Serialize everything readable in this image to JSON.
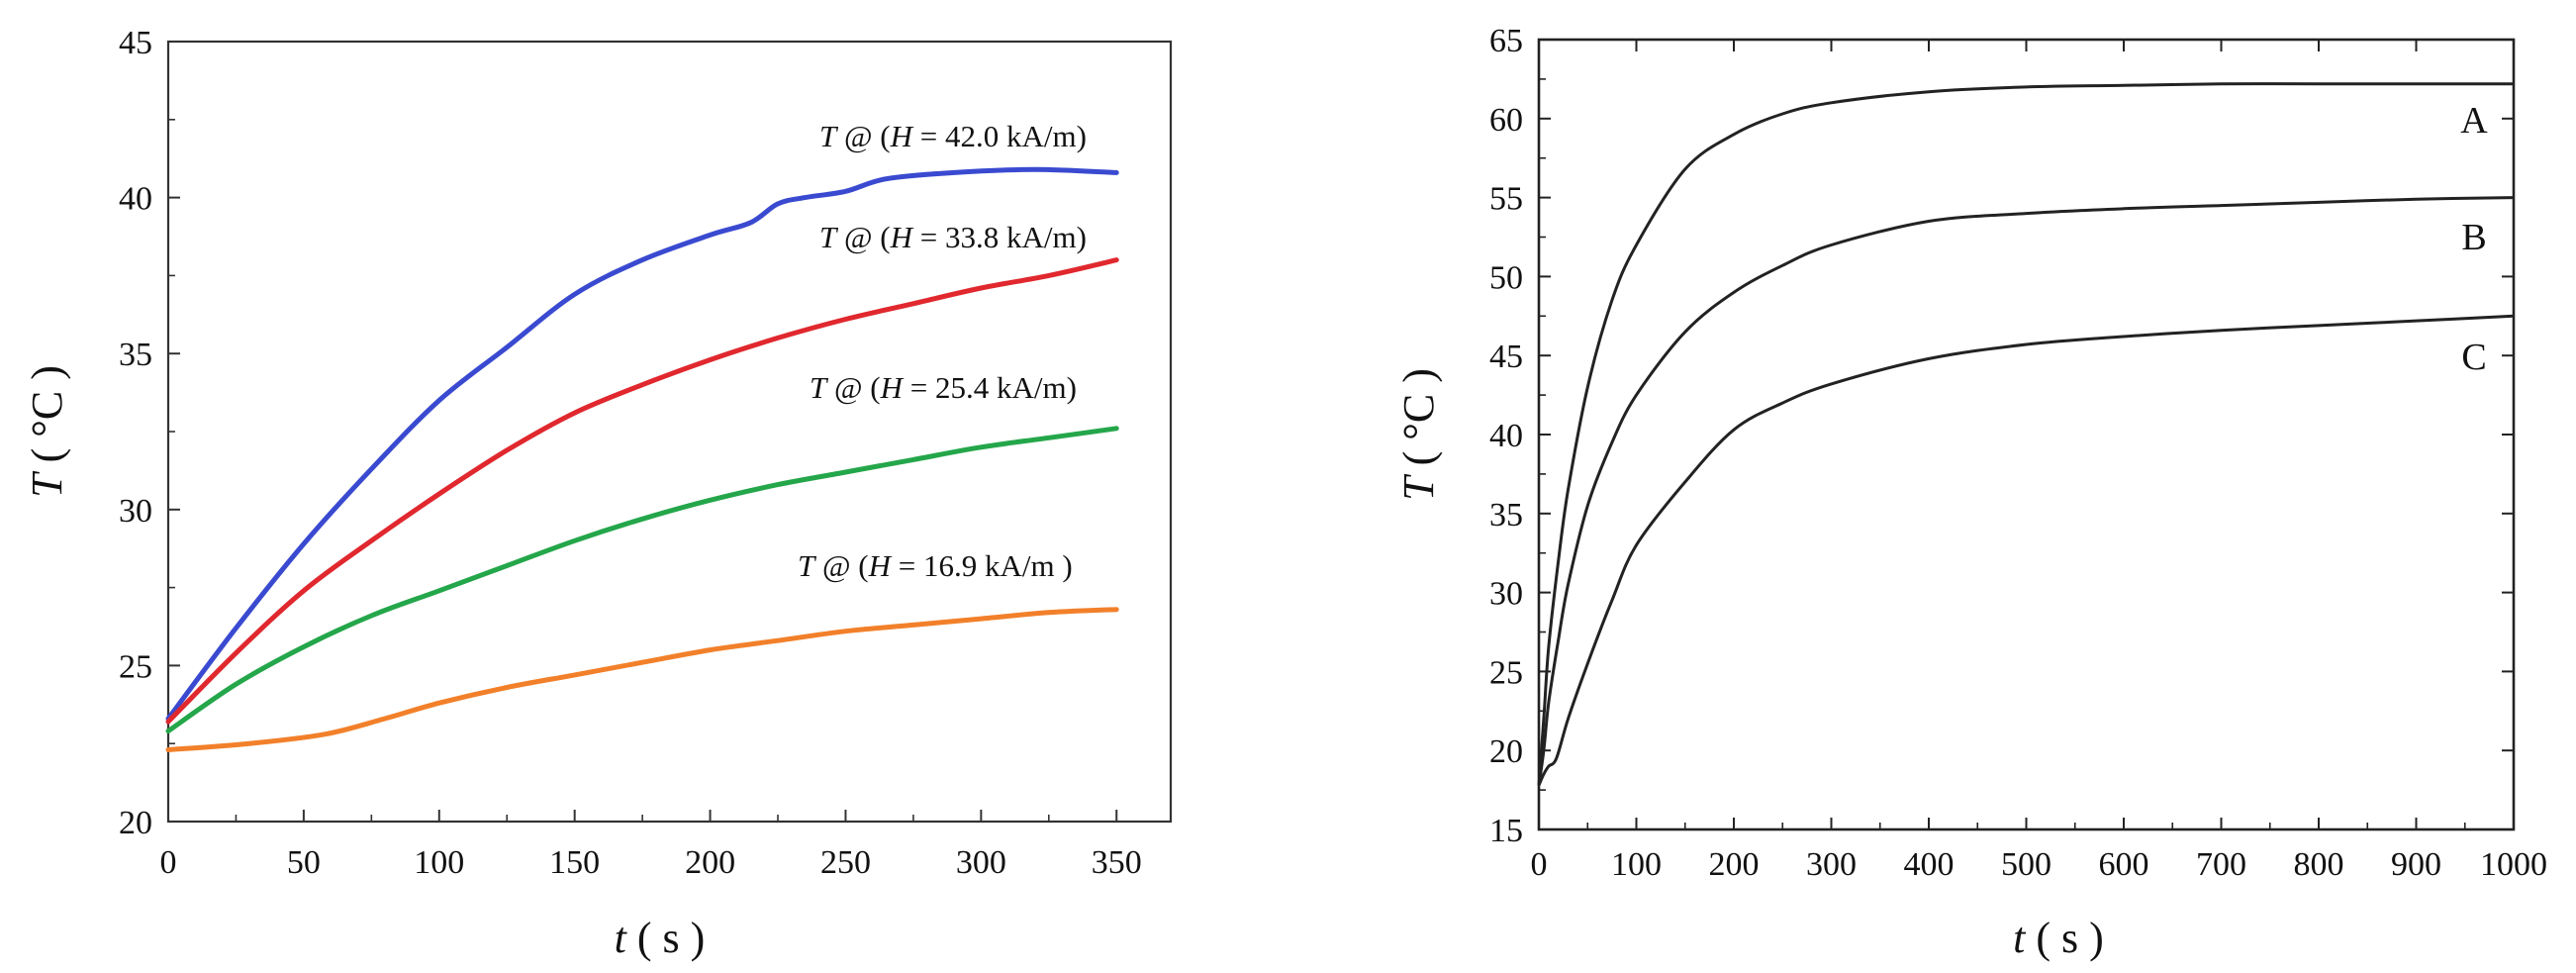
{
  "chart_data": [
    {
      "type": "line",
      "title": "",
      "xlabel": {
        "var": "t",
        "unit": "( s )"
      },
      "ylabel": {
        "var": "T",
        "unit": "( °C )"
      },
      "xlim": [
        0,
        370
      ],
      "ylim": [
        20,
        45
      ],
      "xticks": [
        0,
        50,
        100,
        150,
        200,
        250,
        300,
        350
      ],
      "yticks": [
        20,
        25,
        30,
        35,
        40,
        45
      ],
      "series": [
        {
          "name": "42.0",
          "label_parts": [
            "T",
            " @ (",
            "H",
            " = 42.0  kA/m)"
          ],
          "color": "#3a4ad0",
          "x": [
            0,
            25,
            50,
            75,
            100,
            125,
            150,
            175,
            200,
            215,
            225,
            235,
            250,
            265,
            290,
            320,
            350
          ],
          "y": [
            23.3,
            26.2,
            28.9,
            31.3,
            33.5,
            35.2,
            36.9,
            38.0,
            38.8,
            39.2,
            39.8,
            40.0,
            40.2,
            40.6,
            40.8,
            40.9,
            40.8
          ]
        },
        {
          "name": "33.8",
          "label_parts": [
            "T",
            " @ (",
            "H",
            " = 33.8 kA/m)"
          ],
          "color": "#e0282e",
          "x": [
            0,
            25,
            50,
            75,
            100,
            125,
            150,
            175,
            200,
            225,
            250,
            275,
            300,
            325,
            350
          ],
          "y": [
            23.2,
            25.4,
            27.4,
            29.0,
            30.5,
            31.9,
            33.1,
            34.0,
            34.8,
            35.5,
            36.1,
            36.6,
            37.1,
            37.5,
            38.0
          ]
        },
        {
          "name": "25.4",
          "label_parts": [
            "T",
            " @ (",
            "H",
            " = 25.4 kA/m)"
          ],
          "color": "#24a64a",
          "x": [
            0,
            25,
            50,
            75,
            100,
            125,
            150,
            175,
            200,
            225,
            250,
            275,
            300,
            325,
            350
          ],
          "y": [
            22.9,
            24.4,
            25.6,
            26.6,
            27.4,
            28.2,
            29.0,
            29.7,
            30.3,
            30.8,
            31.2,
            31.6,
            32.0,
            32.3,
            32.6
          ]
        },
        {
          "name": "16.9",
          "label_parts": [
            "T",
            " @ (",
            "H",
            " = 16.9 kA/m )"
          ],
          "color": "#f2802a",
          "x": [
            0,
            30,
            58,
            80,
            100,
            125,
            150,
            175,
            200,
            225,
            250,
            275,
            300,
            325,
            350
          ],
          "y": [
            22.3,
            22.5,
            22.8,
            23.3,
            23.8,
            24.3,
            24.7,
            25.1,
            25.5,
            25.8,
            26.1,
            26.3,
            26.5,
            26.7,
            26.8
          ]
        }
      ]
    },
    {
      "type": "line",
      "title": "",
      "xlabel": {
        "var": "t",
        "unit": "( s )"
      },
      "ylabel": {
        "var": "T",
        "unit": "( °C )"
      },
      "xlim": [
        0,
        1000
      ],
      "ylim": [
        15,
        65
      ],
      "xticks": [
        0,
        100,
        200,
        300,
        400,
        500,
        600,
        700,
        800,
        900,
        1000
      ],
      "yticks": [
        15,
        20,
        25,
        30,
        35,
        40,
        45,
        50,
        55,
        60,
        65
      ],
      "series": [
        {
          "name": "A",
          "color": "#222222",
          "x": [
            0,
            5,
            10,
            20,
            30,
            50,
            75,
            100,
            150,
            200,
            250,
            300,
            400,
            500,
            600,
            700,
            800,
            900,
            1000
          ],
          "y": [
            17.8,
            22,
            26.5,
            32,
            36.5,
            43,
            48.5,
            52,
            56.8,
            59.0,
            60.3,
            61.0,
            61.7,
            62.0,
            62.1,
            62.2,
            62.2,
            62.2,
            62.2
          ]
        },
        {
          "name": "B",
          "color": "#222222",
          "x": [
            0,
            5,
            10,
            20,
            30,
            50,
            75,
            100,
            150,
            200,
            250,
            300,
            400,
            500,
            600,
            700,
            800,
            900,
            1000
          ],
          "y": [
            17.8,
            20,
            23,
            27,
            30.5,
            35.5,
            39.5,
            42.5,
            46.5,
            49.0,
            50.7,
            52.0,
            53.5,
            54.0,
            54.3,
            54.5,
            54.7,
            54.9,
            55.0
          ]
        },
        {
          "name": "C",
          "color": "#222222",
          "x": [
            0,
            5,
            10,
            18,
            30,
            50,
            75,
            100,
            150,
            200,
            250,
            300,
            400,
            500,
            600,
            700,
            800,
            900,
            1000
          ],
          "y": [
            17.8,
            18.5,
            19.0,
            19.5,
            22,
            25.5,
            29.5,
            33,
            37.0,
            40.3,
            42.0,
            43.2,
            44.8,
            45.7,
            46.2,
            46.6,
            46.9,
            47.2,
            47.5
          ]
        }
      ]
    }
  ]
}
